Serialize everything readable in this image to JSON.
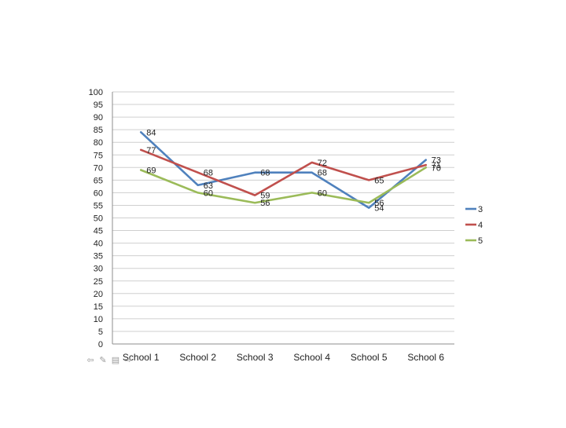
{
  "chart_data": {
    "type": "line",
    "categories": [
      "School 1",
      "School 2",
      "School 3",
      "School 4",
      "School 5",
      "School 6"
    ],
    "yticks": [
      0,
      5,
      10,
      15,
      20,
      25,
      30,
      35,
      40,
      45,
      50,
      55,
      60,
      65,
      70,
      75,
      80,
      85,
      90,
      95,
      100
    ],
    "ylim": [
      0,
      100
    ],
    "grid": true,
    "legend_position": "right",
    "series": [
      {
        "name": "3",
        "color": "#4f81bd",
        "values": [
          84,
          63,
          68,
          68,
          54,
          73
        ]
      },
      {
        "name": "4",
        "color": "#c0504d",
        "values": [
          77,
          68,
          59,
          72,
          65,
          71
        ]
      },
      {
        "name": "5",
        "color": "#9bbb59",
        "values": [
          69,
          60,
          56,
          60,
          56,
          70
        ]
      }
    ]
  },
  "controls": {
    "prev_icon": "arrow-left-icon",
    "pen_icon": "pen-icon",
    "menu_icon": "menu-icon",
    "next_icon": "arrow-right-icon"
  }
}
